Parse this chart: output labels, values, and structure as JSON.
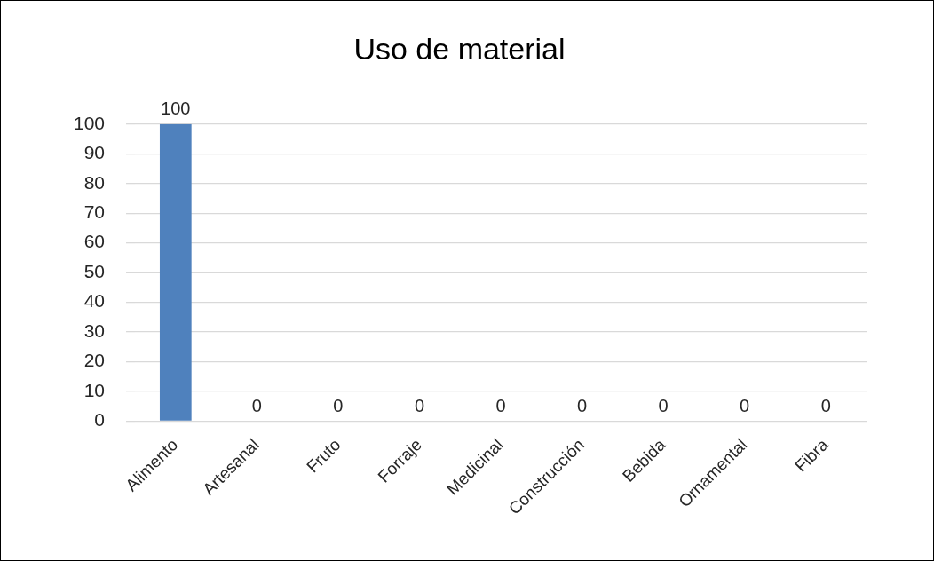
{
  "chart_data": {
    "type": "bar",
    "title": "Uso de material",
    "categories": [
      "Alimento",
      "Artesanal",
      "Fruto",
      "Forraje",
      "Medicinal",
      "Construcción",
      "Bebida",
      "Ornamental",
      "Fibra"
    ],
    "values": [
      100,
      0,
      0,
      0,
      0,
      0,
      0,
      0,
      0
    ],
    "colors": [
      "#4f81bd",
      "#b25600",
      "#b25600",
      "#b25600",
      "#b25600",
      "#b25600",
      "#b25600",
      "#b25600",
      "#b25600"
    ],
    "ylim": [
      0,
      100
    ],
    "yticks": [
      0,
      10,
      20,
      30,
      40,
      50,
      60,
      70,
      80,
      90,
      100
    ],
    "grid": "y",
    "data_labels": true
  }
}
